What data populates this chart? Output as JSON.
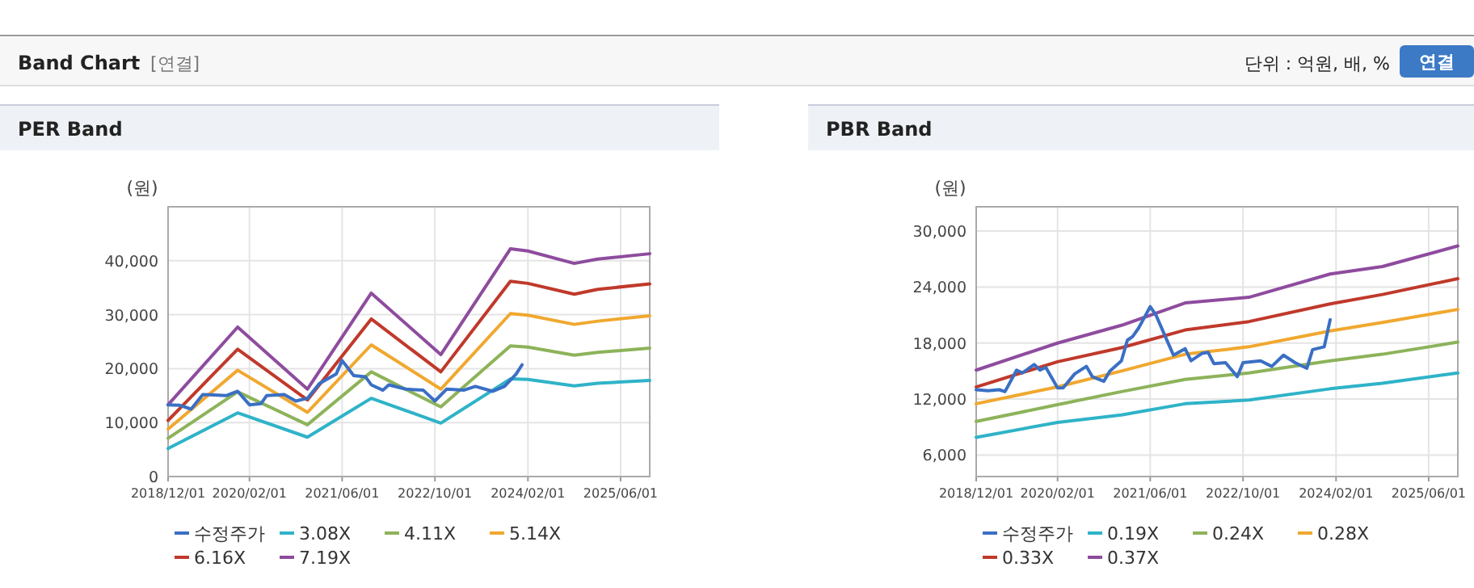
{
  "chart_data": [
    {
      "type": "line",
      "title": "PER Band",
      "ylabel": "(원)",
      "annotations": [
        "Band Chart",
        "[연결]",
        "단위 : 억원, 배, %",
        "연결"
      ],
      "x": [
        "2018-12",
        "2019-12",
        "2020-12",
        "2021-11",
        "2022-11",
        "2023-11",
        "2024-02",
        "2024-10",
        "2025-02",
        "2025-11"
      ],
      "series": [
        {
          "name": "수정주가",
          "color": "#3a6fc4",
          "x": [
            "2018-12",
            "2019-02",
            "2019-04",
            "2019-06",
            "2019-10",
            "2019-12",
            "2020-02",
            "2020-04",
            "2020-05",
            "2020-08",
            "2020-10",
            "2020-12",
            "2021-02",
            "2021-05",
            "2021-06",
            "2021-08",
            "2021-10",
            "2021-11",
            "2022-01",
            "2022-02",
            "2022-05",
            "2022-08",
            "2022-10",
            "2022-12",
            "2023-03",
            "2023-05",
            "2023-08",
            "2023-10",
            "2023-12",
            "2024-01"
          ],
          "values": [
            13300,
            13200,
            12500,
            15200,
            15000,
            15800,
            13300,
            13500,
            15000,
            15200,
            14000,
            14500,
            17200,
            19000,
            21500,
            18700,
            18500,
            17000,
            16000,
            17000,
            16200,
            16000,
            14000,
            16200,
            16000,
            16700,
            15800,
            16700,
            19000,
            20700
          ]
        },
        {
          "name": "3.08X",
          "color": "#2fb3c8",
          "values": [
            5200,
            11800,
            7300,
            14500,
            9900,
            18100,
            18000,
            16800,
            17300,
            17800
          ]
        },
        {
          "name": "4.11X",
          "color": "#8db35a",
          "values": [
            7100,
            15700,
            9600,
            19400,
            12900,
            24200,
            24000,
            22500,
            23000,
            23800
          ]
        },
        {
          "name": "5.14X",
          "color": "#f0a830",
          "values": [
            8800,
            19700,
            11900,
            24400,
            16200,
            30200,
            29900,
            28200,
            28800,
            29800
          ]
        },
        {
          "name": "6.16X",
          "color": "#c0392b",
          "values": [
            10400,
            23600,
            14200,
            29200,
            19400,
            36200,
            35800,
            33800,
            34700,
            35700
          ]
        },
        {
          "name": "7.19X",
          "color": "#8e4c9e",
          "values": [
            13300,
            27700,
            16200,
            34000,
            22600,
            42200,
            41800,
            39500,
            40300,
            41300
          ]
        }
      ],
      "xlim": [
        "2018-12-01",
        "2025-11-01"
      ],
      "xticks": [
        {
          "value": "2018-12-01",
          "label": "2018/12/01"
        },
        {
          "value": "2020-02-01",
          "label": "2020/02/01"
        },
        {
          "value": "2021-06-01",
          "label": "2021/06/01"
        },
        {
          "value": "2022-10-01",
          "label": "2022/10/01"
        },
        {
          "value": "2024-02-01",
          "label": "2024/02/01"
        },
        {
          "value": "2025-06-01",
          "label": "2025/06/01"
        }
      ],
      "ylim": [
        0,
        50000
      ],
      "yticks": [
        0,
        {
          "value": 10000,
          "label": "10,000"
        },
        {
          "value": 20000,
          "label": "20,000"
        },
        {
          "value": 30000,
          "label": "30,000"
        },
        {
          "value": 40000,
          "label": "40,000"
        }
      ],
      "grid": true,
      "legend": "bottom",
      "line_style": "solid"
    },
    {
      "type": "line",
      "title": "PBR Band",
      "ylabel": "(원)",
      "x": [
        "2018-12",
        "2020-02",
        "2021-01",
        "2021-12",
        "2022-11",
        "2024-01",
        "2024-10",
        "2025-11"
      ],
      "series": [
        {
          "name": "수정주가",
          "color": "#3a6fc4",
          "x": [
            "2018-12",
            "2019-02",
            "2019-04",
            "2019-05",
            "2019-07",
            "2019-08",
            "2019-10",
            "2019-11",
            "2019-12",
            "2020-02",
            "2020-03",
            "2020-05",
            "2020-07",
            "2020-08",
            "2020-10",
            "2020-11",
            "2021-01",
            "2021-02",
            "2021-03",
            "2021-04",
            "2021-06",
            "2021-07",
            "2021-09",
            "2021-10",
            "2021-12",
            "2022-01",
            "2022-03",
            "2022-04",
            "2022-05",
            "2022-07",
            "2022-09",
            "2022-10",
            "2023-01",
            "2023-03",
            "2023-05",
            "2023-07",
            "2023-09",
            "2023-10",
            "2023-12",
            "2024-01"
          ],
          "values": [
            13000,
            12900,
            13000,
            12800,
            15100,
            14800,
            15700,
            15100,
            15400,
            13200,
            13200,
            14700,
            15500,
            14400,
            13900,
            15000,
            16100,
            18300,
            18700,
            19600,
            21900,
            21000,
            18100,
            16700,
            17400,
            16100,
            16900,
            17000,
            15800,
            15900,
            14400,
            15900,
            16100,
            15500,
            16700,
            15900,
            15300,
            17300,
            17600,
            20500
          ]
        },
        {
          "name": "0.19X",
          "color": "#2fb3c8",
          "values": [
            7900,
            9500,
            10300,
            11500,
            11900,
            13100,
            13700,
            14800
          ]
        },
        {
          "name": "0.24X",
          "color": "#8db35a",
          "values": [
            9600,
            11400,
            12800,
            14100,
            14800,
            16100,
            16800,
            18100
          ]
        },
        {
          "name": "0.28X",
          "color": "#f0a830",
          "values": [
            11500,
            13300,
            15000,
            16800,
            17600,
            19300,
            20200,
            21600
          ]
        },
        {
          "name": "0.33X",
          "color": "#c0392b",
          "values": [
            13300,
            16000,
            17500,
            19400,
            20300,
            22200,
            23200,
            24900
          ]
        },
        {
          "name": "0.37X",
          "color": "#8e4c9e",
          "values": [
            15100,
            18000,
            19900,
            22300,
            22900,
            25400,
            26200,
            28400
          ]
        }
      ],
      "xlim": [
        "2018-12-01",
        "2025-11-01"
      ],
      "xticks": [
        {
          "value": "2018-12-01",
          "label": "2018/12/01"
        },
        {
          "value": "2020-02-01",
          "label": "2020/02/01"
        },
        {
          "value": "2021-06-01",
          "label": "2021/06/01"
        },
        {
          "value": "2022-10-01",
          "label": "2022/10/01"
        },
        {
          "value": "2024-02-01",
          "label": "2024/02/01"
        },
        {
          "value": "2025-06-01",
          "label": "2025/06/01"
        }
      ],
      "ylim": [
        3700,
        32600
      ],
      "yticks": [
        {
          "value": 6000,
          "label": "6,000"
        },
        {
          "value": 12000,
          "label": "12,000"
        },
        {
          "value": 18000,
          "label": "18,000"
        },
        {
          "value": 24000,
          "label": "24,000"
        },
        {
          "value": 30000,
          "label": "30,000"
        }
      ],
      "grid": true,
      "legend": "bottom",
      "line_style": "solid"
    }
  ]
}
